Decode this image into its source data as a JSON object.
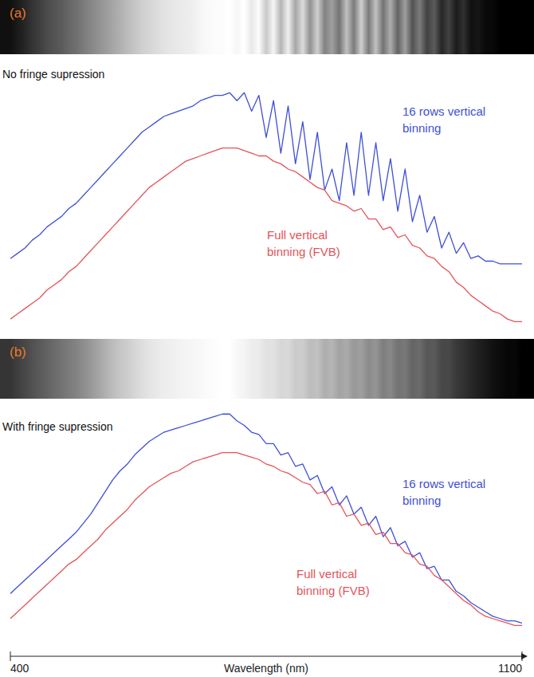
{
  "chart_data": [
    {
      "type": "line",
      "title": "(a)",
      "subtitle": "No fringe supression",
      "xlim": [
        400,
        1100
      ],
      "ylim": [
        0,
        100
      ],
      "tick_labels": false,
      "x": [
        400,
        410,
        420,
        430,
        440,
        450,
        460,
        470,
        480,
        490,
        500,
        510,
        520,
        530,
        540,
        550,
        560,
        570,
        580,
        590,
        600,
        610,
        620,
        630,
        640,
        650,
        660,
        670,
        680,
        690,
        700,
        710,
        720,
        730,
        740,
        750,
        760,
        770,
        780,
        790,
        800,
        810,
        820,
        830,
        840,
        850,
        860,
        870,
        880,
        890,
        900,
        910,
        920,
        930,
        940,
        950,
        960,
        970,
        980,
        990,
        1000,
        1010,
        1020,
        1030,
        1040,
        1050,
        1060,
        1070,
        1080,
        1090,
        1100
      ],
      "series": [
        {
          "name": "16 rows vertical binning",
          "color": "#3f4fd6",
          "values": [
            26,
            28,
            30,
            33,
            35,
            38,
            40,
            42,
            45,
            47,
            50,
            53,
            56,
            59,
            62,
            65,
            68,
            71,
            74,
            76,
            78,
            80,
            81,
            82,
            83,
            84,
            86,
            87,
            88,
            88,
            89,
            86,
            89,
            82,
            88,
            72,
            86,
            66,
            84,
            62,
            78,
            56,
            74,
            52,
            60,
            48,
            70,
            50,
            74,
            50,
            70,
            48,
            64,
            44,
            60,
            40,
            50,
            36,
            42,
            30,
            36,
            28,
            32,
            26,
            27,
            25,
            25,
            24,
            24,
            24,
            24
          ]
        },
        {
          "name": "Full vertical binning (FVB)",
          "color": "#e3545a",
          "values": [
            3,
            5,
            7,
            9,
            11,
            14,
            16,
            18,
            21,
            23,
            26,
            29,
            32,
            35,
            38,
            41,
            44,
            47,
            50,
            53,
            55,
            57,
            59,
            61,
            63,
            64,
            65,
            66,
            67,
            68,
            68,
            68,
            67,
            66,
            65,
            65,
            63,
            62,
            60,
            59,
            57,
            55,
            53,
            52,
            48,
            47,
            46,
            44,
            45,
            41,
            41,
            37,
            38,
            34,
            35,
            31,
            30,
            27,
            26,
            23,
            21,
            17,
            15,
            12,
            10,
            8,
            6,
            5,
            3,
            2,
            2
          ]
        }
      ]
    },
    {
      "type": "line",
      "title": "(b)",
      "subtitle": "With fringe supression",
      "xlim": [
        400,
        1100
      ],
      "ylim": [
        0,
        100
      ],
      "tick_labels": "x",
      "xticks": [
        400,
        1100
      ],
      "x_label": "Wavelength (nm)",
      "x": [
        400,
        410,
        420,
        430,
        440,
        450,
        460,
        470,
        480,
        490,
        500,
        510,
        520,
        530,
        540,
        550,
        560,
        570,
        580,
        590,
        600,
        610,
        620,
        630,
        640,
        650,
        660,
        670,
        680,
        690,
        700,
        710,
        720,
        730,
        740,
        750,
        760,
        770,
        780,
        790,
        800,
        810,
        820,
        830,
        840,
        850,
        860,
        870,
        880,
        890,
        900,
        910,
        920,
        930,
        940,
        950,
        960,
        970,
        980,
        990,
        1000,
        1010,
        1020,
        1030,
        1040,
        1050,
        1060,
        1070,
        1080,
        1090,
        1100
      ],
      "series": [
        {
          "name": "16 rows vertical binning",
          "color": "#3f4fd6",
          "values": [
            16,
            19,
            22,
            25,
            28,
            31,
            34,
            37,
            40,
            43,
            47,
            51,
            56,
            61,
            66,
            70,
            73,
            77,
            80,
            83,
            85,
            87,
            88,
            89,
            90,
            91,
            92,
            93,
            94,
            95,
            95,
            92,
            90,
            87,
            86,
            82,
            82,
            77,
            78,
            72,
            73,
            66,
            68,
            60,
            63,
            55,
            59,
            51,
            54,
            46,
            50,
            41,
            45,
            37,
            39,
            32,
            34,
            27,
            28,
            22,
            22,
            17,
            15,
            12,
            10,
            8,
            6,
            5,
            4,
            4,
            3
          ]
        },
        {
          "name": "Full vertical binning (FVB)",
          "color": "#e3545a",
          "values": [
            5,
            8,
            11,
            14,
            17,
            20,
            23,
            26,
            29,
            31,
            34,
            37,
            40,
            44,
            47,
            50,
            53,
            57,
            60,
            63,
            65,
            67,
            69,
            70,
            72,
            74,
            75,
            76,
            77,
            78,
            78,
            78,
            77,
            76,
            75,
            73,
            72,
            70,
            69,
            67,
            65,
            64,
            60,
            61,
            55,
            56,
            50,
            51,
            46,
            47,
            42,
            43,
            38,
            38,
            34,
            33,
            29,
            28,
            24,
            22,
            19,
            16,
            13,
            11,
            8,
            6,
            5,
            4,
            3,
            2,
            2
          ]
        }
      ]
    }
  ]
}
